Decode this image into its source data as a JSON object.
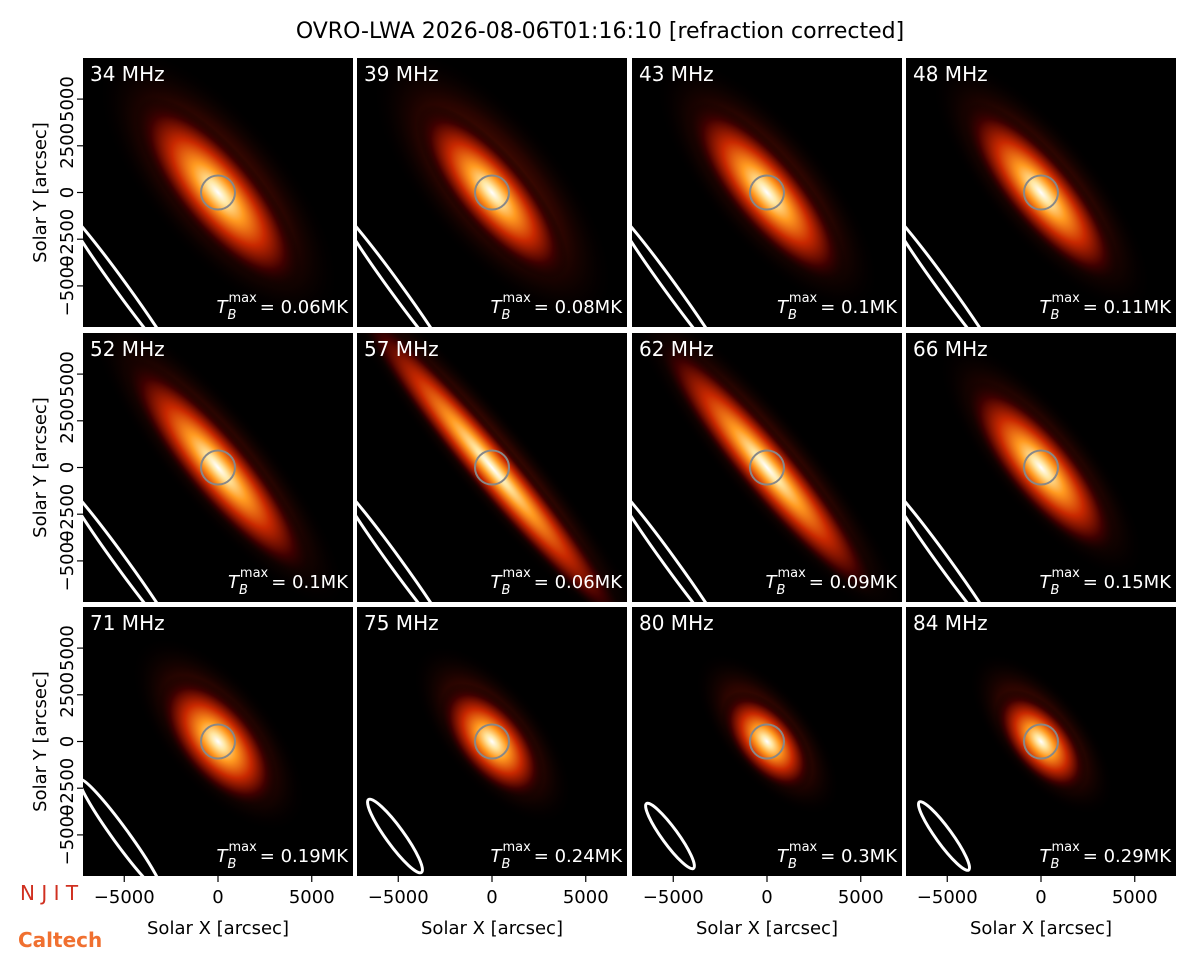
{
  "title": "OVRO-LWA 2026-08-06T01:16:10 [refraction corrected]",
  "logos": [
    "N J I T",
    "Caltech"
  ],
  "tb_symbol": {
    "base": "T",
    "sub": "B",
    "sup": "max"
  },
  "chart_data": [
    {
      "type": "heatmap",
      "title": "34 MHz",
      "annotation": "= 0.06MK",
      "xlim": [
        -7200,
        7200
      ],
      "ylim": [
        -7200,
        7200
      ],
      "ylabel": "Solar Y [arcsec]",
      "yticks": [
        {
          "value": -5000,
          "label": "−5000"
        },
        {
          "value": -2500,
          "label": "−2500"
        },
        0,
        2500,
        5000
      ]
    },
    {
      "type": "heatmap",
      "title": "39 MHz",
      "annotation": "= 0.08MK",
      "xlim": [
        -7200,
        7200
      ],
      "ylim": [
        -7200,
        7200
      ]
    },
    {
      "type": "heatmap",
      "title": "43 MHz",
      "annotation": "= 0.1MK",
      "xlim": [
        -7200,
        7200
      ],
      "ylim": [
        -7200,
        7200
      ]
    },
    {
      "type": "heatmap",
      "title": "48 MHz",
      "annotation": "= 0.11MK",
      "xlim": [
        -7200,
        7200
      ],
      "ylim": [
        -7200,
        7200
      ]
    },
    {
      "type": "heatmap",
      "title": "52 MHz",
      "annotation": "= 0.1MK",
      "xlim": [
        -7200,
        7200
      ],
      "ylim": [
        -7200,
        7200
      ],
      "ylabel": "Solar Y [arcsec]",
      "yticks": [
        {
          "value": -5000,
          "label": "−5000"
        },
        {
          "value": -2500,
          "label": "−2500"
        },
        0,
        2500,
        5000
      ]
    },
    {
      "type": "heatmap",
      "title": "57 MHz",
      "annotation": "= 0.06MK",
      "xlim": [
        -7200,
        7200
      ],
      "ylim": [
        -7200,
        7200
      ]
    },
    {
      "type": "heatmap",
      "title": "62 MHz",
      "annotation": "= 0.09MK",
      "xlim": [
        -7200,
        7200
      ],
      "ylim": [
        -7200,
        7200
      ]
    },
    {
      "type": "heatmap",
      "title": "66 MHz",
      "annotation": "= 0.15MK",
      "xlim": [
        -7200,
        7200
      ],
      "ylim": [
        -7200,
        7200
      ]
    },
    {
      "type": "heatmap",
      "title": "71 MHz",
      "annotation": "= 0.19MK",
      "xlim": [
        -7200,
        7200
      ],
      "ylim": [
        -7200,
        7200
      ],
      "ylabel": "Solar Y [arcsec]",
      "yticks": [
        {
          "value": -5000,
          "label": "−5000"
        },
        {
          "value": -2500,
          "label": "−2500"
        },
        0,
        2500,
        5000
      ],
      "xlabel": "Solar X [arcsec]",
      "xticks": [
        {
          "value": -5000,
          "label": "−5000"
        },
        0,
        5000
      ]
    },
    {
      "type": "heatmap",
      "title": "75 MHz",
      "annotation": "= 0.24MK",
      "xlim": [
        -7200,
        7200
      ],
      "ylim": [
        -7200,
        7200
      ],
      "xlabel": "Solar X [arcsec]",
      "xticks": [
        {
          "value": -5000,
          "label": "−5000"
        },
        0,
        5000
      ]
    },
    {
      "type": "heatmap",
      "title": "80 MHz",
      "annotation": "= 0.3MK",
      "xlim": [
        -7200,
        7200
      ],
      "ylim": [
        -7200,
        7200
      ],
      "xlabel": "Solar X [arcsec]",
      "xticks": [
        {
          "value": -5000,
          "label": "−5000"
        },
        0,
        5000
      ]
    },
    {
      "type": "heatmap",
      "title": "84 MHz",
      "annotation": "= 0.29MK",
      "xlim": [
        -7200,
        7200
      ],
      "ylim": [
        -7200,
        7200
      ],
      "xlabel": "Solar X [arcsec]",
      "xticks": [
        {
          "value": -5000,
          "label": "−5000"
        },
        0,
        5000
      ]
    }
  ]
}
